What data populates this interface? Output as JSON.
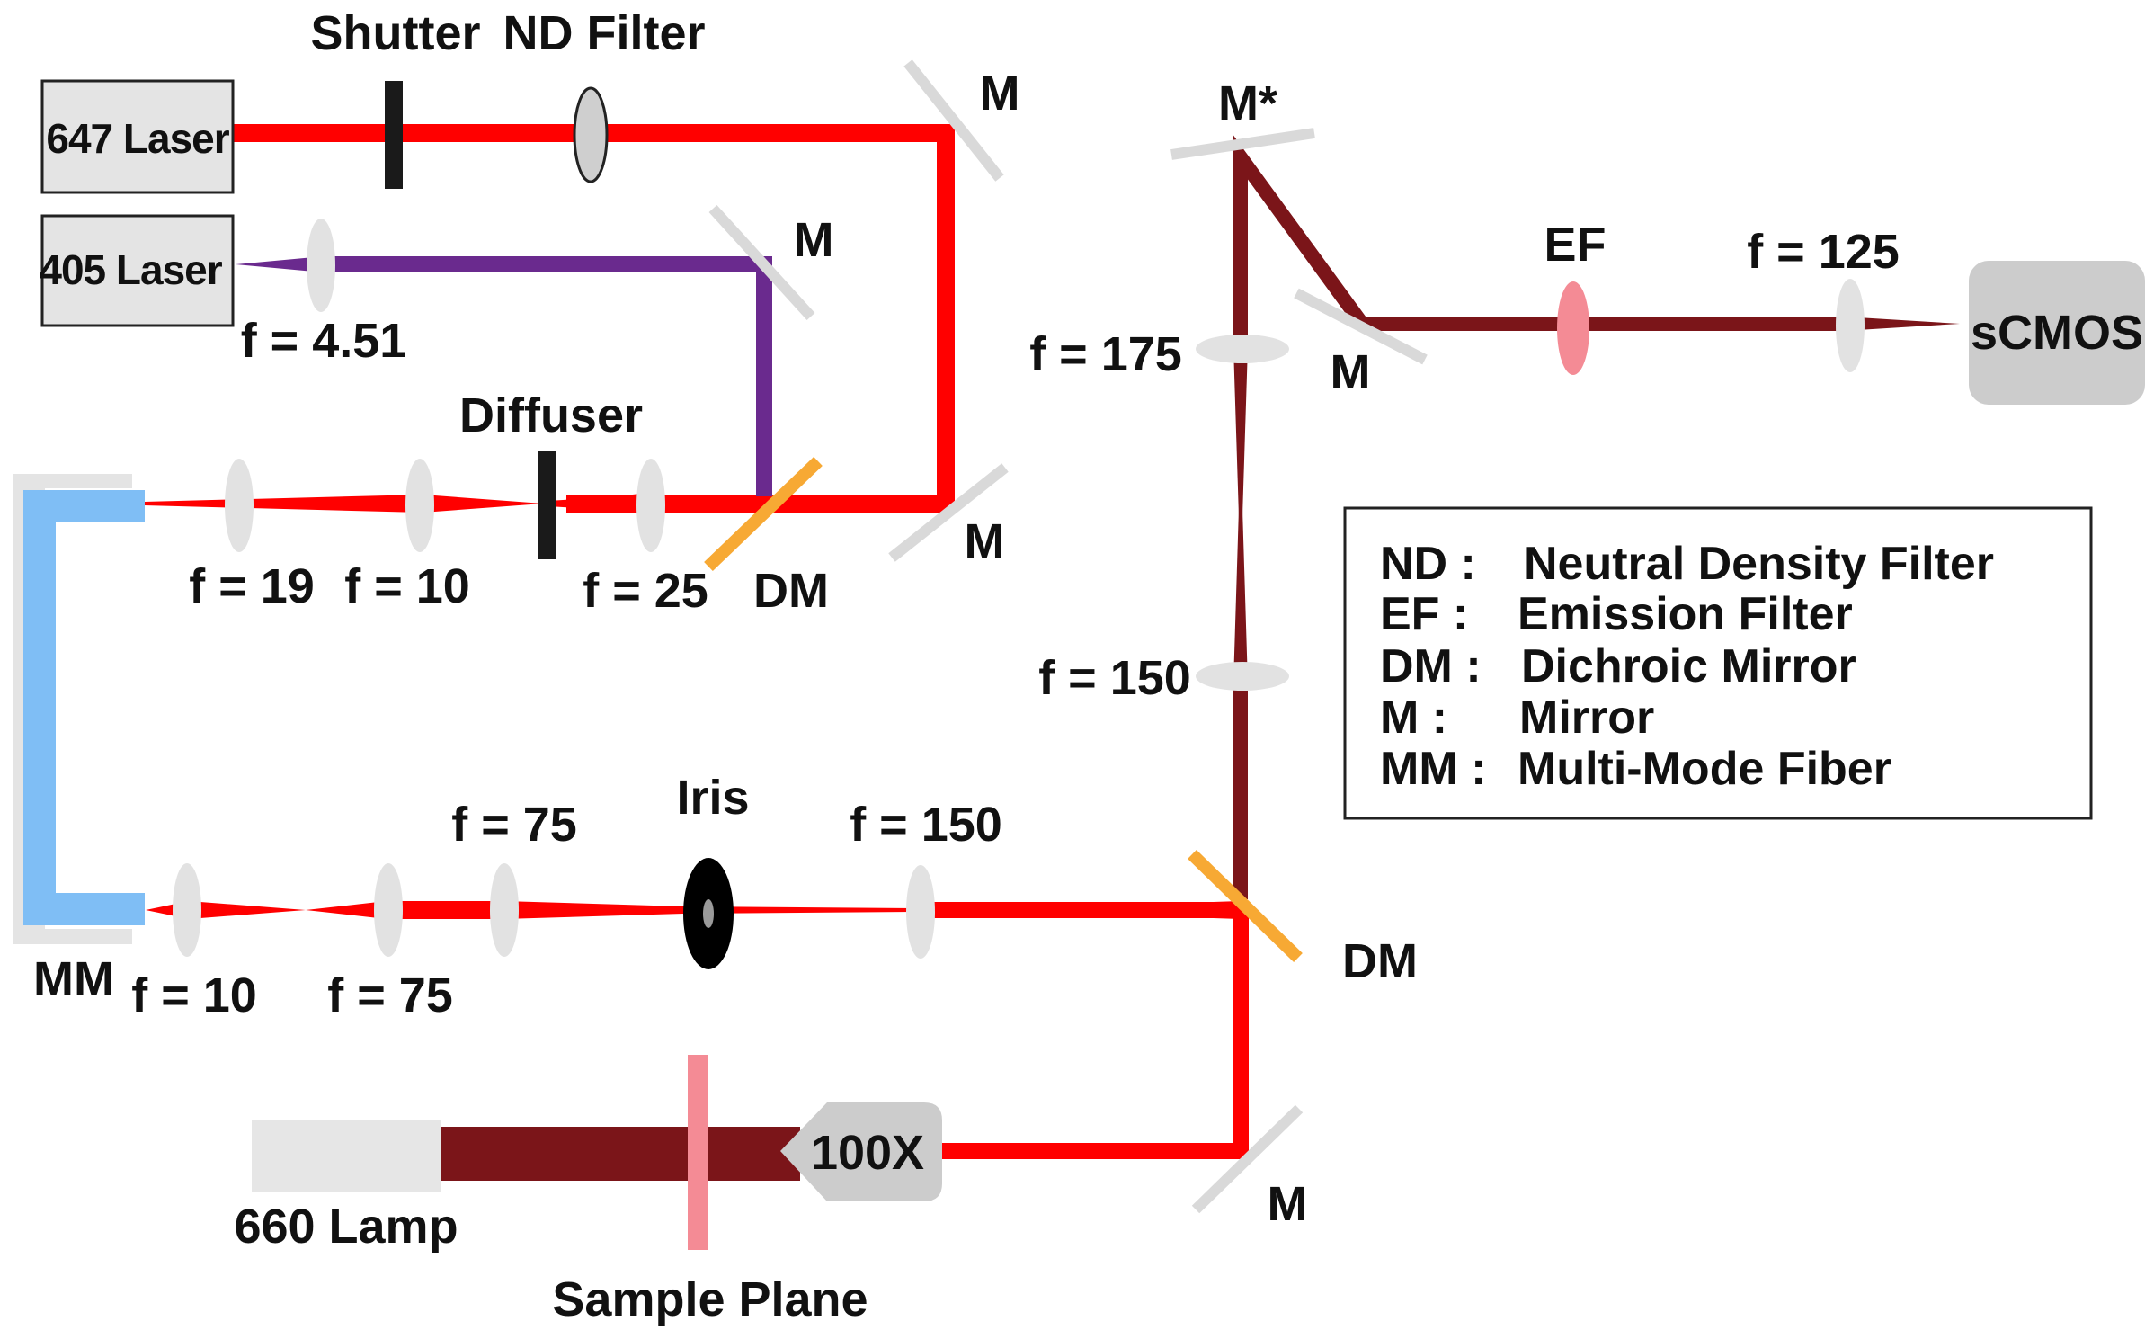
{
  "labels": {
    "shutter": "Shutter",
    "nd_filter": "ND Filter",
    "laser_647": "647 Laser",
    "laser_405": "405 Laser",
    "f_451": "f = 4.51",
    "diffuser": "Diffuser",
    "f_19": "f = 19",
    "f_10_top": "f = 10",
    "f_25": "f = 25",
    "dm_top": "DM",
    "m_1": "M",
    "m_2": "M",
    "m_3": "M",
    "m_star": "M*",
    "m_4": "M",
    "m_5": "M",
    "ef": "EF",
    "f_125": "f = 125",
    "scmos": "sCMOS",
    "f_175": "f = 175",
    "f_150_right": "f = 150",
    "f_75_top": "f = 75",
    "iris": "Iris",
    "f_150_mid": "f = 150",
    "mm": "MM",
    "f_10_bottom": "f = 10",
    "f_75_bottom": "f = 75",
    "dm_bottom": "DM",
    "objective": "100X",
    "lamp": "660 Lamp",
    "sample_plane": "Sample Plane"
  },
  "legend": [
    {
      "abbr": "ND :",
      "desc": "Neutral Density Filter"
    },
    {
      "abbr": "EF :",
      "desc": "Emission Filter"
    },
    {
      "abbr": "DM :",
      "desc": "Dichroic Mirror"
    },
    {
      "abbr": "M :",
      "desc": "Mirror"
    },
    {
      "abbr": "MM :",
      "desc": "Multi-Mode Fiber"
    }
  ],
  "colors": {
    "laser_647_beam": "#ff0000",
    "laser_405_beam": "#6a2a8e",
    "emission_beam": "#7b1519",
    "dichroic_mirror": "#f7a934",
    "emission_filter": "#f48b95",
    "fiber": "#7fbef5",
    "lens": "#e2e2e2",
    "mirror": "#d9d9d9",
    "box": "#e4e4e4"
  }
}
